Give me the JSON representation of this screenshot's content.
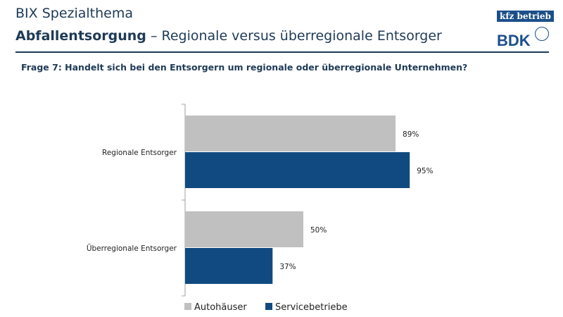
{
  "header": {
    "title": "BIX Spezialthema",
    "subtitle_bold": "Abfallentsorgung",
    "subtitle_rest": " – Regionale versus überregionale Entsorger",
    "question": "Frage 7: Handelt sich bei den Entsorgern um regionale oder überregionale Unternehmen?"
  },
  "logos": {
    "kfz": "kfz betrieb",
    "bdk": "BDK"
  },
  "chart_data": {
    "type": "bar",
    "orientation": "horizontal",
    "categories": [
      "Regionale Entsorger",
      "Überregionale Entsorger"
    ],
    "series": [
      {
        "name": "Autohäuser",
        "color": "#c0c0c0",
        "values": [
          89,
          50
        ]
      },
      {
        "name": "Servicebetriebe",
        "color": "#114a80",
        "values": [
          95,
          37
        ]
      }
    ],
    "value_suffix": "%",
    "xlim": [
      0,
      100
    ],
    "grid": false,
    "legend": "bottom"
  }
}
